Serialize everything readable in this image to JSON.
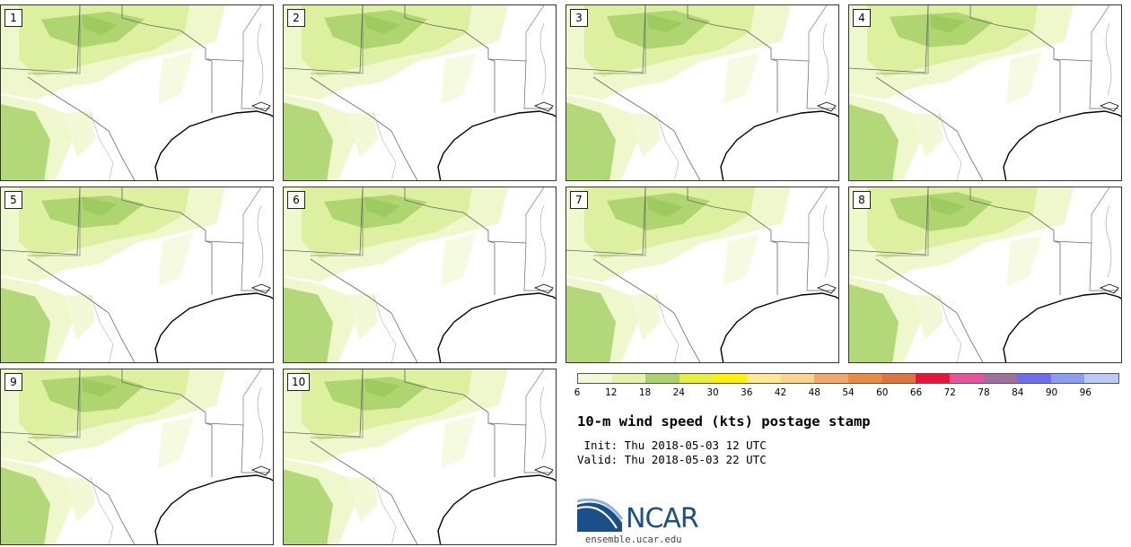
{
  "map": {
    "title": "10-m wind speed (kts) postage stamp",
    "init_line": " Init: Thu 2018-05-03 12 UTC",
    "valid_line": "Valid: Thu 2018-05-03 22 UTC",
    "members": [
      "1",
      "2",
      "3",
      "4",
      "5",
      "6",
      "7",
      "8",
      "9",
      "10"
    ]
  },
  "legend": {
    "ticks": [
      "6",
      "12",
      "18",
      "24",
      "30",
      "36",
      "42",
      "48",
      "54",
      "60",
      "66",
      "72",
      "78",
      "84",
      "90",
      "96"
    ],
    "colors": [
      "#f1f9d3",
      "#e3f3a8",
      "#a9d46c",
      "#e5f03a",
      "#fff200",
      "#ffe98e",
      "#fcd48a",
      "#f3a86a",
      "#ec8a3e",
      "#e0733e",
      "#f0103a",
      "#e8529c",
      "#a2709f",
      "#6a6ff0",
      "#8a9ef5",
      "#b8cbf7"
    ]
  },
  "fills": {
    "light": "#eef8cc",
    "mid": "#dcf0a0",
    "strong": "#a8d26a",
    "border": "#666666",
    "coast": "#000000"
  },
  "logo": {
    "text": "NCAR",
    "url": "ensemble.ucar.edu"
  }
}
